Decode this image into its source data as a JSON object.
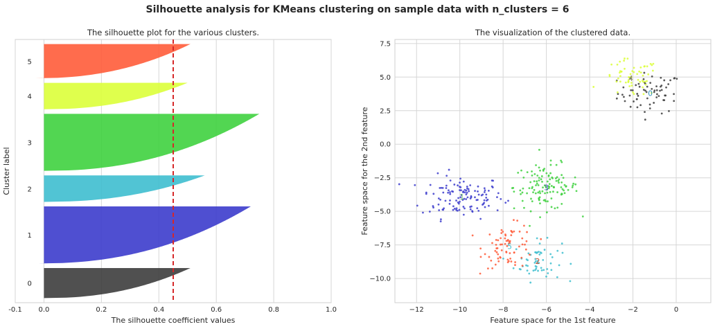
{
  "suptitle": "Silhouette analysis for KMeans clustering on sample data with n_clusters = 6",
  "chart_data": [
    {
      "type": "area",
      "title": "The silhouette plot for the various clusters.",
      "xlabel": "The silhouette coefficient values",
      "ylabel": "Cluster label",
      "xlim": [
        -0.1,
        1.0
      ],
      "xticks": [
        -0.1,
        0.0,
        0.2,
        0.4,
        0.6,
        0.8,
        1.0
      ],
      "xtick_labels": [
        "-0.1",
        "0.0",
        "0.2",
        "0.4",
        "0.6",
        "0.8",
        "1.0"
      ],
      "grid": true,
      "average_silhouette": 0.45,
      "average_line_color": "#d62728",
      "clusters": [
        {
          "label": "0",
          "size": 66,
          "max": 0.51,
          "min": 0.0,
          "color": "#3d3d3d"
        },
        {
          "label": "1",
          "size": 125,
          "max": 0.72,
          "min": -0.02,
          "color": "#3c3ccc"
        },
        {
          "label": "2",
          "size": 58,
          "max": 0.56,
          "min": 0.0,
          "color": "#3ebecf"
        },
        {
          "label": "3",
          "size": 125,
          "max": 0.75,
          "min": 0.0,
          "color": "#3fd13f"
        },
        {
          "label": "4",
          "size": 58,
          "max": 0.5,
          "min": 0.0,
          "color": "#dcff3a"
        },
        {
          "label": "5",
          "size": 75,
          "max": 0.51,
          "min": -0.03,
          "color": "#ff5c3a"
        }
      ]
    },
    {
      "type": "scatter",
      "title": "The visualization of the clustered data.",
      "xlabel": "Feature space for the 1st feature",
      "ylabel": "Feature space for the 2nd feature",
      "xlim": [
        -13.0,
        1.6
      ],
      "ylim": [
        -11.8,
        7.8
      ],
      "xticks": [
        -12,
        -10,
        -8,
        -6,
        -4,
        -2,
        0
      ],
      "xtick_labels": [
        "−12",
        "−10",
        "−8",
        "−6",
        "−4",
        "−2",
        "0"
      ],
      "yticks": [
        -10.0,
        -7.5,
        -5.0,
        -2.5,
        0.0,
        2.5,
        5.0,
        7.5
      ],
      "ytick_labels": [
        "−10.0",
        "−7.5",
        "−5.0",
        "−2.5",
        "0.0",
        "2.5",
        "5.0",
        "7.5"
      ],
      "grid": true,
      "clusters": [
        {
          "label": "0",
          "center": [
            -1.2,
            3.8
          ],
          "spread": [
            0.75,
            0.75
          ],
          "n": 66,
          "color": "#3d3d3d",
          "label_color": "#2f8fb8"
        },
        {
          "label": "1",
          "center": [
            -9.9,
            -3.9
          ],
          "spread": [
            0.95,
            0.8
          ],
          "n": 125,
          "color": "#3c3ccc",
          "label_color": "#63b26a"
        },
        {
          "label": "2",
          "center": [
            -6.4,
            -8.7
          ],
          "spread": [
            0.55,
            0.75
          ],
          "n": 58,
          "color": "#3ebecf",
          "label_color": "#c94d2e"
        },
        {
          "label": "3",
          "center": [
            -6.0,
            -3.2
          ],
          "spread": [
            0.75,
            0.85
          ],
          "n": 125,
          "color": "#3fd13f",
          "label_color": "#5b4fd1"
        },
        {
          "label": "4",
          "center": [
            -2.1,
            4.9
          ],
          "spread": [
            0.65,
            0.7
          ],
          "n": 58,
          "color": "#dcff3a",
          "label_color": "#8a8a6a"
        },
        {
          "label": "5",
          "center": [
            -7.7,
            -7.6
          ],
          "spread": [
            0.6,
            0.8
          ],
          "n": 75,
          "color": "#ff5c3a",
          "label_color": "#3ebecf"
        }
      ],
      "point_size": 2.5
    }
  ]
}
